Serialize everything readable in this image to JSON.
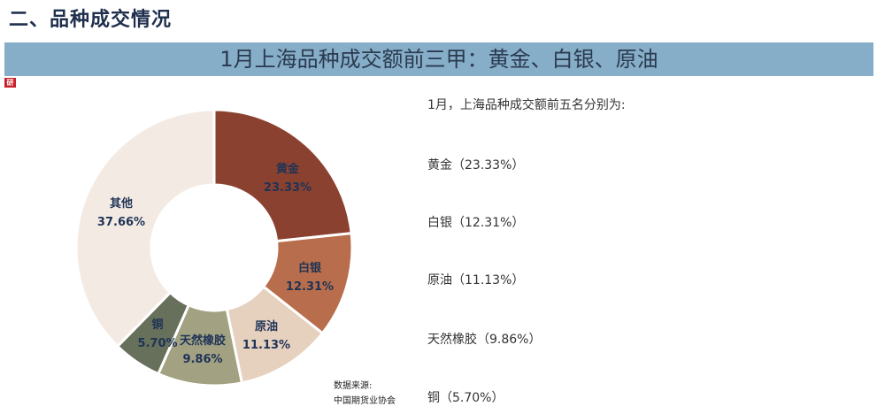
{
  "header": {
    "section_title": "二、品种成交情况",
    "banner_title": "1月上海品种成交额前三甲：黄金、白银、原油",
    "logo_text": "研"
  },
  "chart_data": {
    "type": "pie",
    "variant": "donut",
    "title": "1月上海品种成交额前三甲：黄金、白银、原油",
    "start_angle": "12 o'clock, clockwise",
    "categories": [
      "黄金",
      "白银",
      "原油",
      "天然橡胶",
      "铜",
      "其他"
    ],
    "values": [
      23.33,
      12.31,
      11.13,
      9.86,
      5.7,
      37.66
    ],
    "unit": "%",
    "labels": [
      "23.33%",
      "12.31%",
      "11.13%",
      "9.86%",
      "5.70%",
      "37.66%"
    ],
    "colors": [
      "#8b4130",
      "#b86e4c",
      "#e6d0be",
      "#a2a283",
      "#67705a",
      "#f3ebe3"
    ],
    "legend": "none (labels on slices)"
  },
  "chart": {
    "label_color": "#1f3356",
    "slices": [
      {
        "name": "黄金",
        "pct": "23.33%"
      },
      {
        "name": "白银",
        "pct": "12.31%"
      },
      {
        "name": "原油",
        "pct": "11.13%"
      },
      {
        "name": "天然橡胶",
        "pct": "9.86%"
      },
      {
        "name": "铜",
        "pct": "5.70%"
      },
      {
        "name": "其他",
        "pct": "37.66%"
      }
    ]
  },
  "source": {
    "label": "数据来源:",
    "value": "中国期货业协会"
  },
  "summary": {
    "intro": "1月，上海品种成交额前五名分别为:",
    "items": [
      "黄金（23.33%）",
      "白银（12.31%）",
      "原油（11.13%）",
      "天然橡胶（9.86%）",
      "铜（5.70%）"
    ]
  }
}
